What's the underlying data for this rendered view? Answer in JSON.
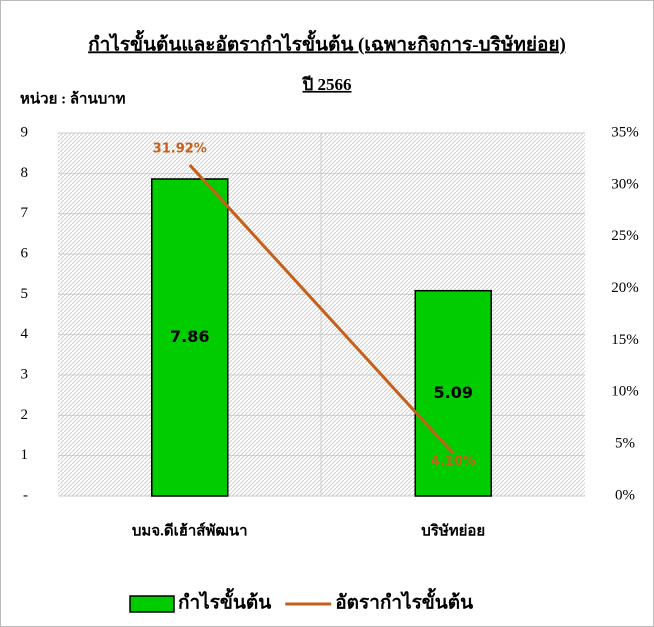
{
  "chart_data": {
    "type": "bar_line",
    "title": "กำไรขั้นต้นและอัตรากำไรขั้นต้น (เฉพาะกิจการ-บริษัทย่อย)",
    "subtitle": "ปี 2566",
    "annotation": "หน่วย : ล้านบาท",
    "categories": [
      "บมจ.ดีเฮ้าส์พัฒนา",
      "บริษัทย่อย"
    ],
    "series": [
      {
        "name": "กำไรขั้นต้น",
        "type": "bar",
        "color": "#00cc00",
        "values": [
          7.86,
          5.09
        ],
        "value_labels": [
          "7.86",
          "5.09"
        ]
      },
      {
        "name": "อัตรากำไรขั้นต้น",
        "type": "line",
        "color": "#c5601c",
        "axis": "y2",
        "values": [
          31.92,
          4.1
        ],
        "value_labels": [
          "31.92%",
          "4.10%"
        ]
      }
    ],
    "ylim": [
      0,
      9
    ],
    "yticks": [
      {
        "value": 0,
        "label": "-"
      },
      1,
      2,
      3,
      4,
      5,
      6,
      7,
      8,
      9
    ],
    "y2lim": [
      0,
      35
    ],
    "y2ticks": [
      {
        "value": 0,
        "label": "0%"
      },
      {
        "value": 5,
        "label": "5%"
      },
      {
        "value": 10,
        "label": "10%"
      },
      {
        "value": 15,
        "label": "15%"
      },
      {
        "value": 20,
        "label": "20%"
      },
      {
        "value": 25,
        "label": "25%"
      },
      {
        "value": 30,
        "label": "30%"
      },
      {
        "value": 35,
        "label": "35%"
      }
    ],
    "grid": true,
    "legend": "bottom"
  }
}
